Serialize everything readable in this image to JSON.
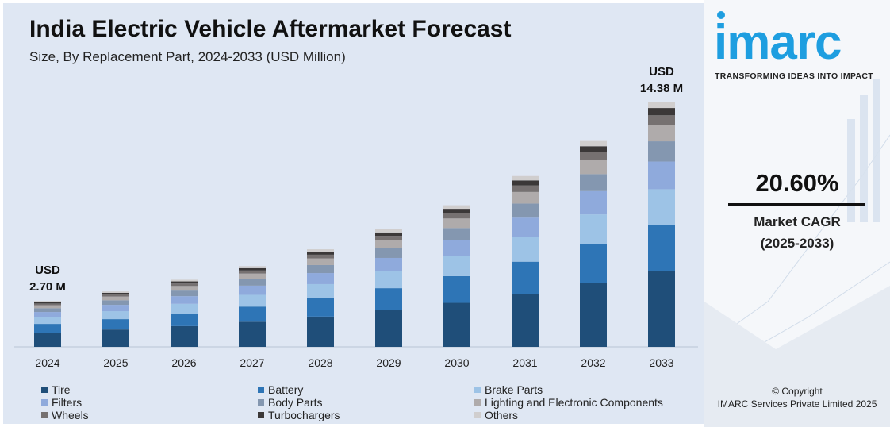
{
  "chart_data": {
    "type": "bar",
    "stacked": true,
    "title": "India Electric Vehicle Aftermarket Forecast",
    "subtitle": "Size, By Replacement Part, 2024-2033 (USD Million)",
    "categories": [
      "2024",
      "2025",
      "2026",
      "2027",
      "2028",
      "2029",
      "2030",
      "2031",
      "2032",
      "2033"
    ],
    "totals": [
      2.7,
      3.26,
      3.93,
      4.74,
      5.72,
      6.89,
      8.31,
      10.02,
      12.09,
      14.38
    ],
    "series": [
      {
        "name": "Tire",
        "color": "#1f4e79",
        "values": [
          0.84,
          1.02,
          1.22,
          1.48,
          1.78,
          2.15,
          2.59,
          3.12,
          3.76,
          4.48
        ]
      },
      {
        "name": "Battery",
        "color": "#2e75b6",
        "values": [
          0.51,
          0.61,
          0.74,
          0.89,
          1.08,
          1.3,
          1.57,
          1.89,
          2.28,
          2.71
        ]
      },
      {
        "name": "Brake Parts",
        "color": "#9dc3e6",
        "values": [
          0.39,
          0.47,
          0.57,
          0.69,
          0.83,
          1.0,
          1.2,
          1.45,
          1.75,
          2.08
        ]
      },
      {
        "name": "Filters",
        "color": "#8faadc",
        "values": [
          0.31,
          0.37,
          0.45,
          0.54,
          0.65,
          0.78,
          0.94,
          1.14,
          1.37,
          1.63
        ]
      },
      {
        "name": "Body Parts",
        "color": "#8497b0",
        "values": [
          0.22,
          0.27,
          0.33,
          0.39,
          0.47,
          0.57,
          0.69,
          0.83,
          1.0,
          1.19
        ]
      },
      {
        "name": "Lighting and Electronic Components",
        "color": "#afabab",
        "values": [
          0.18,
          0.22,
          0.27,
          0.32,
          0.39,
          0.47,
          0.56,
          0.68,
          0.82,
          0.98
        ]
      },
      {
        "name": "Wheels",
        "color": "#767171",
        "values": [
          0.1,
          0.12,
          0.15,
          0.18,
          0.22,
          0.26,
          0.32,
          0.38,
          0.46,
          0.55
        ]
      },
      {
        "name": "Turbochargers",
        "color": "#3b3838",
        "values": [
          0.08,
          0.1,
          0.12,
          0.14,
          0.17,
          0.2,
          0.25,
          0.3,
          0.36,
          0.43
        ]
      },
      {
        "name": "Others",
        "color": "#d0cece",
        "values": [
          0.07,
          0.08,
          0.1,
          0.12,
          0.15,
          0.18,
          0.21,
          0.26,
          0.31,
          0.37
        ]
      }
    ],
    "annotations": {
      "start": {
        "category": "2024",
        "line1": "USD",
        "line2": "2.70 M"
      },
      "end": {
        "category": "2033",
        "line1": "USD",
        "line2": "14.38 M"
      }
    },
    "grid": false,
    "legend_placement": "bottom"
  },
  "brand": {
    "logo_text": "imarc",
    "tagline": "TRANSFORMING IDEAS INTO IMPACT",
    "accent": "#1e9ee0"
  },
  "cagr": {
    "value": "20.60%",
    "label": "Market CAGR",
    "period": "(2025-2033)"
  },
  "footer": {
    "copyright": "© Copyright",
    "company": "IMARC Services Private Limited 2025"
  }
}
